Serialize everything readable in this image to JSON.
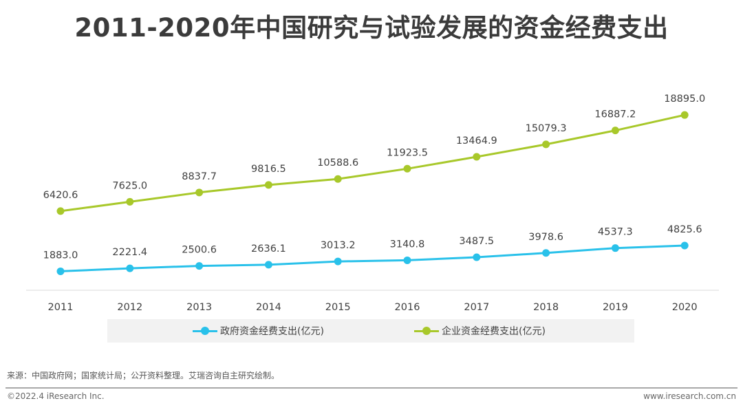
{
  "title": "2011-2020年中国研究与试验发展的资金经费支出",
  "chart_data": {
    "type": "line",
    "categories": [
      "2011",
      "2012",
      "2013",
      "2014",
      "2015",
      "2016",
      "2017",
      "2018",
      "2019",
      "2020"
    ],
    "series": [
      {
        "name": "政府资金经费支出(亿元)",
        "color": "#29c1ea",
        "values": [
          1883.0,
          2221.4,
          2500.6,
          2636.1,
          3013.2,
          3140.8,
          3487.5,
          3978.6,
          4537.3,
          4825.6
        ],
        "labels": [
          "1883.0",
          "2221.4",
          "2500.6",
          "2636.1",
          "3013.2",
          "3140.8",
          "3487.5",
          "3978.6",
          "4537.3",
          "4825.6"
        ]
      },
      {
        "name": "企业资金经费支出(亿元)",
        "color": "#a8c82a",
        "values": [
          6420.6,
          7625.0,
          8837.7,
          9816.5,
          10588.6,
          11923.5,
          13464.9,
          15079.3,
          16887.2,
          18895.0
        ],
        "labels": [
          "6420.6",
          "7625.0",
          "8837.7",
          "9816.5",
          "10588.6",
          "11923.5",
          "13464.9",
          "15079.3",
          "16887.2",
          "18895.0"
        ]
      }
    ],
    "grid": false,
    "legend_position": "bottom"
  },
  "footer": {
    "source": "来源：中国政府网；国家统计局；公开资料整理。艾瑞咨询自主研究绘制。",
    "copyright": "©2022.4 iResearch Inc.",
    "website": "www.iresearch.com.cn"
  }
}
